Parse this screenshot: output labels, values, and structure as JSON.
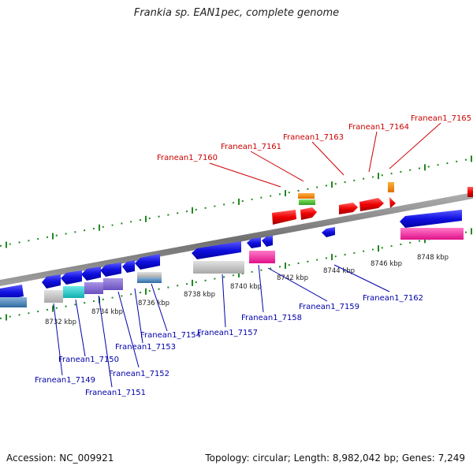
{
  "title": "Frankia sp. EAN1pec, complete genome",
  "footer": {
    "accession": "Accession: NC_009921",
    "topology": "Topology: circular; Length: 8,982,042 bp; Genes: 7,249"
  },
  "colors": {
    "forward_label": "#cc0000",
    "reverse_label": "#0000aa",
    "backbone": "#808080",
    "tick": "#228822"
  },
  "kbp_labels": [
    "8732 kbp",
    "8734 kbp",
    "8736 kbp",
    "8738 kbp",
    "8740 kbp",
    "8742 kbp",
    "8744 kbp",
    "8746 kbp",
    "8748 kbp"
  ],
  "forward_genes": [
    "Franean1_7160",
    "Franean1_7161",
    "Franean1_7163",
    "Franean1_7164",
    "Franean1_7165"
  ],
  "reverse_genes": [
    "Franean1_7149",
    "Franean1_7150",
    "Franean1_7151",
    "Franean1_7152",
    "Franean1_7153",
    "Franean1_7154",
    "Franean1_7157",
    "Franean1_7158",
    "Franean1_7159",
    "Franean1_7162"
  ]
}
